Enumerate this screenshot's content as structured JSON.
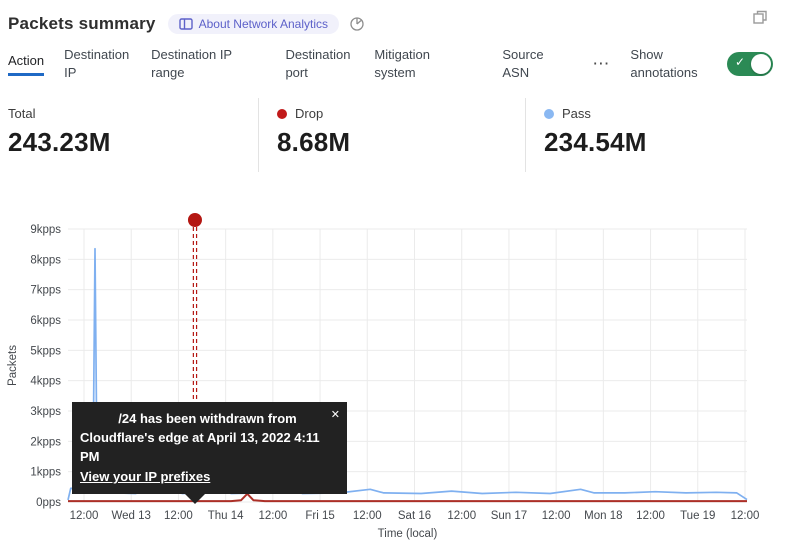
{
  "header": {
    "title": "Packets summary",
    "badge_label": "About Network Analytics"
  },
  "icons": {
    "book_icon": "book",
    "time_icon": "time-pie",
    "popout_icon": "overlapping-windows",
    "overflow_icon": "⋯",
    "check_icon": "✓",
    "close_icon": "✕"
  },
  "colors": {
    "active_tab_blue": "#1f69c5",
    "toggle_green": "#2b8a55",
    "drop_red": "#c11a1a",
    "pass_blue": "#8ab8f2",
    "badge_purple": "#5d61c9",
    "annotation_red": "#b41712"
  },
  "tabs": {
    "items": [
      {
        "label": "Action",
        "active": true
      },
      {
        "label": "Destination IP",
        "active": false
      },
      {
        "label": "Destination IP range",
        "active": false
      },
      {
        "label": "Destination port",
        "active": false
      },
      {
        "label": "Mitigation system",
        "active": false
      },
      {
        "label": "Source ASN",
        "active": false
      }
    ],
    "annotations": {
      "label": "Show annotations",
      "toggle_on": true
    }
  },
  "stats": {
    "items": [
      {
        "label": "Total",
        "value": "243.23M"
      },
      {
        "label": "Drop",
        "value": "8.68M"
      },
      {
        "label": "Pass",
        "value": "234.54M"
      }
    ]
  },
  "tooltip": {
    "message_lines": [
      "/24 has been withdrawn from",
      "Cloudflare's edge at April 13, 2022 4:11 PM"
    ],
    "link_label": "View your IP prefixes"
  },
  "chart_data": {
    "type": "line",
    "ylabel": "Packets",
    "xlabel": "Time (local)",
    "ylim": [
      0,
      9
    ],
    "y_ticks": [
      "9kpps",
      "8kpps",
      "7kpps",
      "6kpps",
      "5kpps",
      "4kpps",
      "3kpps",
      "2kpps",
      "1kpps",
      "0pps"
    ],
    "x_ticks": [
      "12:00",
      "Wed 13",
      "12:00",
      "Thu 14",
      "12:00",
      "Fri 15",
      "12:00",
      "Sat 16",
      "12:00",
      "Sun 17",
      "12:00",
      "Mon 18",
      "12:00",
      "Tue 19",
      "12:00"
    ],
    "grid": true,
    "legend_position": "none",
    "series": [
      {
        "name": "Pass",
        "color": "#7fb0f0",
        "unit": "kpps",
        "points": [
          [
            0,
            0.07
          ],
          [
            0.004,
            0.45
          ],
          [
            0.027,
            0.46
          ],
          [
            0.031,
            0.36
          ],
          [
            0.0368,
            0.9
          ],
          [
            0.0398,
            8.35
          ],
          [
            0.0428,
            0.8
          ],
          [
            0.048,
            0.33
          ],
          [
            0.07,
            0.3
          ],
          [
            0.1,
            0.28
          ],
          [
            0.127,
            0.5
          ],
          [
            0.138,
            0.3
          ],
          [
            0.152,
            0.42
          ],
          [
            0.168,
            0.28
          ],
          [
            0.2,
            0.3
          ],
          [
            0.222,
            0.44
          ],
          [
            0.24,
            0.28
          ],
          [
            0.285,
            0.3
          ],
          [
            0.33,
            0.42
          ],
          [
            0.345,
            0.28
          ],
          [
            0.4,
            0.3
          ],
          [
            0.445,
            0.42
          ],
          [
            0.465,
            0.3
          ],
          [
            0.52,
            0.28
          ],
          [
            0.565,
            0.36
          ],
          [
            0.61,
            0.28
          ],
          [
            0.66,
            0.32
          ],
          [
            0.71,
            0.28
          ],
          [
            0.755,
            0.42
          ],
          [
            0.775,
            0.3
          ],
          [
            0.82,
            0.3
          ],
          [
            0.865,
            0.34
          ],
          [
            0.91,
            0.3
          ],
          [
            0.955,
            0.32
          ],
          [
            0.985,
            0.3
          ],
          [
            1,
            0.08
          ]
        ]
      },
      {
        "name": "Drop",
        "color": "#ac2f27",
        "unit": "kpps",
        "points": [
          [
            0,
            0.03
          ],
          [
            0.24,
            0.03
          ],
          [
            0.255,
            0.06
          ],
          [
            0.264,
            0.27
          ],
          [
            0.273,
            0.06
          ],
          [
            0.29,
            0.03
          ],
          [
            0.5,
            0.03
          ],
          [
            0.75,
            0.03
          ],
          [
            1,
            0.03
          ]
        ]
      }
    ],
    "annotation": {
      "x_fraction": 0.187,
      "color": "#b41712",
      "date": "April 13, 2022 4:11 PM"
    }
  }
}
